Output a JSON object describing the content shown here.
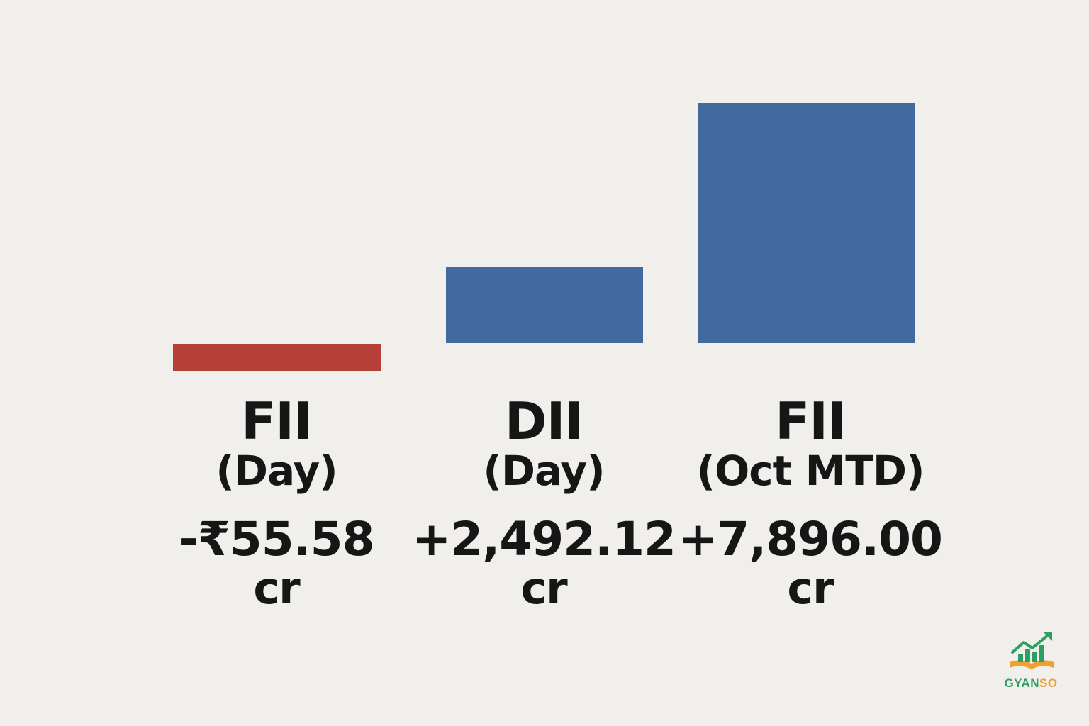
{
  "chart_data": {
    "type": "bar",
    "categories": [
      {
        "name": "FII",
        "period": "(Day)",
        "value_label": "-₹55.58",
        "unit": "cr"
      },
      {
        "name": "DII",
        "period": "(Day)",
        "value_label": "+2,492.12",
        "unit": "cr"
      },
      {
        "name": "FII",
        "period": "(Oct MTD)",
        "value_label": "+7,896.00",
        "unit": "cr"
      }
    ],
    "values": [
      -55.58,
      2492.12,
      7896.0
    ],
    "unit": "cr",
    "colors": {
      "positive": "#416b9e",
      "negative": "#b63f37"
    },
    "title": "",
    "xlabel": "",
    "ylabel": "",
    "grid": false,
    "legend": "none"
  },
  "brand": {
    "text_part1": "GYAN",
    "text_part2": "SO",
    "icon": "rising-chart-book-icon",
    "colors": {
      "green": "#2e9e63",
      "orange": "#f0a030"
    }
  }
}
